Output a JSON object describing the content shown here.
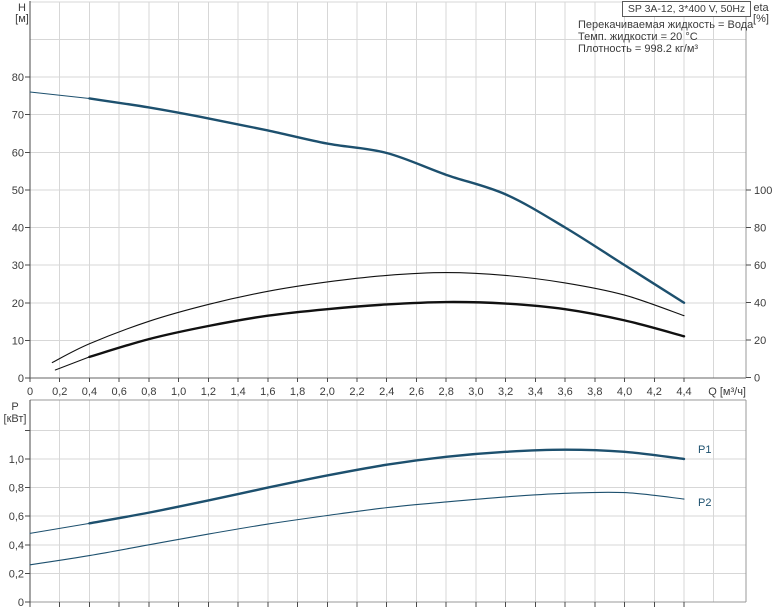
{
  "title_box": {
    "label": "SP 3A-12, 3*400 V, 50Hz"
  },
  "info": [
    "Перекачиваемая жидкость = Вода",
    "Темп. жидкости = 20 °C",
    "Плотность = 998.2 кг/м³"
  ],
  "axis_labels": {
    "h": "H",
    "h_unit": "[м]",
    "eta": "eta",
    "eta_unit": "[%]",
    "p": "P",
    "p_unit": "[кВт]",
    "q": "Q [м³/ч]"
  },
  "series_labels": {
    "p1": "P1",
    "p2": "P2"
  },
  "colors": {
    "curve": "#1d506e",
    "black": "#111111",
    "grid": "#d7d7d7",
    "frame": "#999999",
    "axis_dark": "#4a4a4a",
    "text": "#3c3c3c"
  },
  "chart_data": [
    {
      "type": "line",
      "title": "SP 3A-12, 3*400 V, 50Hz",
      "xlabel": "Q [м³/ч]",
      "ylabel_left": "H [м]",
      "ylabel_right": "eta [%]",
      "grid": true,
      "x_range": [
        0,
        4.8
      ],
      "x_ticks": [
        0,
        0.2,
        0.4,
        0.6,
        0.8,
        1.0,
        1.2,
        1.4,
        1.6,
        1.8,
        2.0,
        2.2,
        2.4,
        2.6,
        2.8,
        3.0,
        3.2,
        3.4,
        3.6,
        3.8,
        4.0,
        4.2,
        4.4
      ],
      "x_tick_labels": [
        "0",
        "0,2",
        "0,4",
        "0,6",
        "0,8",
        "1,0",
        "1,2",
        "1,4",
        "1,6",
        "1,8",
        "2,0",
        "2,2",
        "2,4",
        "2,6",
        "2,8",
        "3,0",
        "3,2",
        "3,4",
        "3,6",
        "3,8",
        "4,0",
        "4,2",
        "4,4"
      ],
      "y_left_range": [
        0,
        100
      ],
      "y_left_ticks": [
        0,
        10,
        20,
        30,
        40,
        50,
        60,
        70,
        80
      ],
      "y_left_tick_labels": [
        "0",
        "10",
        "20",
        "30",
        "40",
        "50",
        "60",
        "70",
        "80"
      ],
      "y_right_ticks": [
        0,
        20,
        40,
        60,
        80,
        100
      ],
      "y_right_tick_labels": [
        "0",
        "20",
        "40",
        "60",
        "80",
        "100"
      ],
      "series": [
        {
          "name": "H",
          "axis": "left",
          "style": "blue",
          "thin_until": 0.4,
          "points": [
            [
              0,
              76
            ],
            [
              0.4,
              74.3
            ],
            [
              0.8,
              71.9
            ],
            [
              1.2,
              69.0
            ],
            [
              1.6,
              65.8
            ],
            [
              2.0,
              62.3
            ],
            [
              2.4,
              59.8
            ],
            [
              2.8,
              54.0
            ],
            [
              3.2,
              48.8
            ],
            [
              3.6,
              40.0
            ],
            [
              4.0,
              30.0
            ],
            [
              4.4,
              20.0
            ]
          ]
        },
        {
          "name": "eta_pump",
          "axis": "right",
          "style": "black-thin",
          "points": [
            [
              0.15,
              8
            ],
            [
              0.4,
              18
            ],
            [
              0.8,
              30
            ],
            [
              1.2,
              39
            ],
            [
              1.6,
              46
            ],
            [
              2.0,
              51
            ],
            [
              2.4,
              54.5
            ],
            [
              2.8,
              56
            ],
            [
              3.2,
              54.5
            ],
            [
              3.6,
              50.5
            ],
            [
              4.0,
              44
            ],
            [
              4.4,
              33
            ]
          ]
        },
        {
          "name": "eta_pump_motor",
          "axis": "right",
          "style": "black",
          "thin_until": 0.4,
          "points": [
            [
              0.17,
              4
            ],
            [
              0.4,
              11
            ],
            [
              0.8,
              20.5
            ],
            [
              1.2,
              27.5
            ],
            [
              1.6,
              33
            ],
            [
              2.0,
              36.5
            ],
            [
              2.4,
              39
            ],
            [
              2.8,
              40.3
            ],
            [
              3.2,
              39.5
            ],
            [
              3.6,
              36.5
            ],
            [
              4.0,
              30.5
            ],
            [
              4.4,
              22
            ]
          ]
        }
      ]
    },
    {
      "type": "line",
      "title": "",
      "xlabel": "",
      "ylabel_left": "P [кВт]",
      "grid": true,
      "x_range": [
        0,
        4.8
      ],
      "x_ticks": [
        0,
        0.2,
        0.4,
        0.6,
        0.8,
        1.0,
        1.2,
        1.4,
        1.6,
        1.8,
        2.0,
        2.2,
        2.4,
        2.6,
        2.8,
        3.0,
        3.2,
        3.4,
        3.6,
        3.8,
        4.0,
        4.2,
        4.4
      ],
      "y_range": [
        0,
        1.4
      ],
      "y_ticks": [
        0,
        0.2,
        0.4,
        0.6,
        0.8,
        1.0,
        1.2
      ],
      "y_tick_labels": [
        "0",
        "0,2",
        "0,4",
        "0,6",
        "0,8",
        "1,0",
        ""
      ],
      "series": [
        {
          "name": "P1",
          "axis": "left",
          "style": "blue",
          "thin_until": 0.4,
          "points": [
            [
              0,
              0.48
            ],
            [
              0.4,
              0.55
            ],
            [
              0.8,
              0.625
            ],
            [
              1.2,
              0.71
            ],
            [
              1.6,
              0.8
            ],
            [
              2.0,
              0.885
            ],
            [
              2.4,
              0.96
            ],
            [
              2.8,
              1.015
            ],
            [
              3.2,
              1.05
            ],
            [
              3.6,
              1.065
            ],
            [
              4.0,
              1.05
            ],
            [
              4.4,
              1.0
            ]
          ]
        },
        {
          "name": "P2",
          "axis": "left",
          "style": "blue-thin",
          "points": [
            [
              0,
              0.26
            ],
            [
              0.4,
              0.325
            ],
            [
              0.8,
              0.4
            ],
            [
              1.2,
              0.475
            ],
            [
              1.6,
              0.545
            ],
            [
              2.0,
              0.605
            ],
            [
              2.4,
              0.66
            ],
            [
              2.8,
              0.7
            ],
            [
              3.2,
              0.735
            ],
            [
              3.6,
              0.76
            ],
            [
              4.0,
              0.765
            ],
            [
              4.4,
              0.72
            ]
          ]
        }
      ]
    }
  ]
}
